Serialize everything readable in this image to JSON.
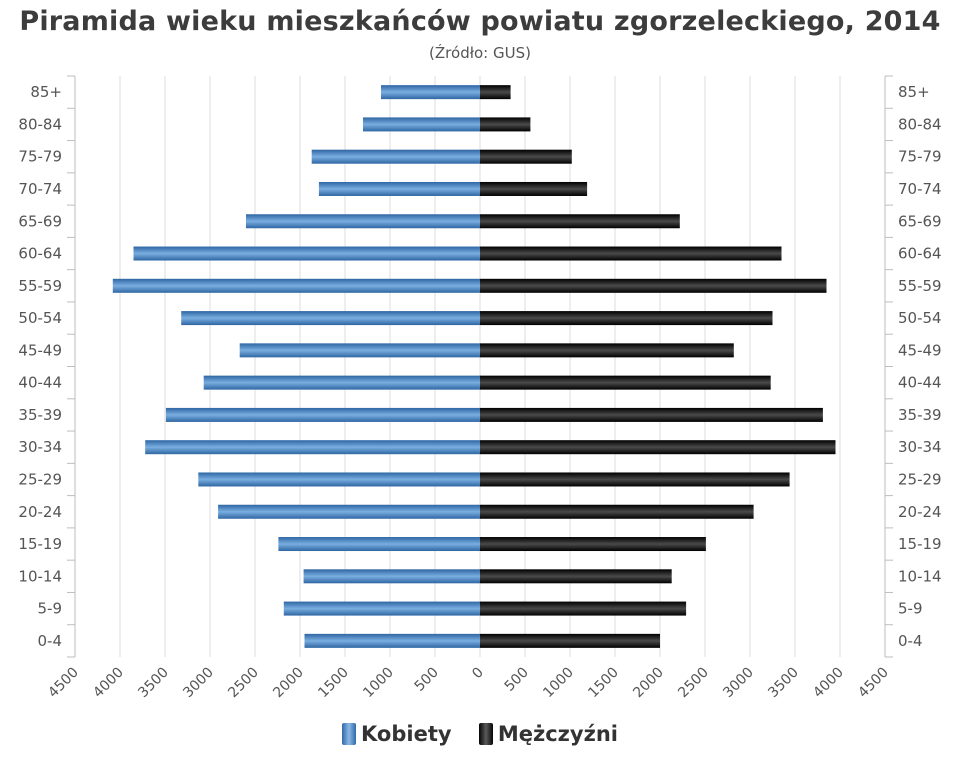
{
  "chart_data": {
    "type": "bar",
    "orientation": "horizontal-pyramid",
    "title": "Piramida wieku mieszkańców powiatu zgorzeleckiego, 2014",
    "subtitle": "(Źródło: GUS)",
    "categories": [
      "85+",
      "80-84",
      "75-79",
      "70-74",
      "65-69",
      "60-64",
      "55-59",
      "50-54",
      "45-49",
      "40-44",
      "35-39",
      "30-34",
      "25-29",
      "20-24",
      "15-19",
      "10-14",
      "5-9",
      "0-4"
    ],
    "series": [
      {
        "name": "Kobiety",
        "color": "#3f7fc2",
        "values": [
          1100,
          1300,
          1870,
          1790,
          2600,
          3850,
          4080,
          3320,
          2670,
          3070,
          3490,
          3720,
          3130,
          2910,
          2240,
          1960,
          2180,
          1950
        ]
      },
      {
        "name": "Mężczyźni",
        "color": "#1a1a1a",
        "values": [
          340,
          560,
          1020,
          1190,
          2220,
          3350,
          3850,
          3250,
          2820,
          3230,
          3810,
          3950,
          3440,
          3040,
          2510,
          2130,
          2290,
          2000
        ]
      }
    ],
    "x_ticks": [
      "4500",
      "4000",
      "3500",
      "3000",
      "2500",
      "2000",
      "1500",
      "1000",
      "500",
      "0",
      "500",
      "1000",
      "1500",
      "2000",
      "2500",
      "3000",
      "3500",
      "4000",
      "4500"
    ],
    "xlim": [
      -4500,
      4500
    ],
    "grid": "vertical",
    "legend_position": "bottom-center"
  }
}
